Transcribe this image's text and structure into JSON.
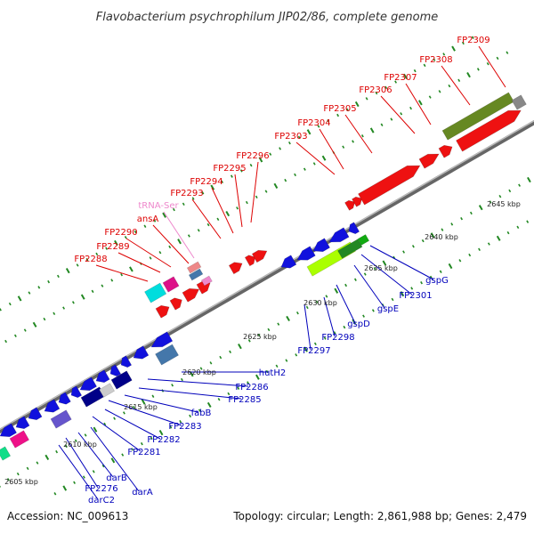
{
  "title": "Flavobacterium psychrophilum JIP02/86, complete genome",
  "accession": "Accession: NC_009613",
  "topology": "Topology: circular; Length: 2,861,988 bp; Genes: 2,479",
  "colors": {
    "forward_gene": "#ee1111",
    "reverse_gene": "#1111dd",
    "forward_label": "#dd0000",
    "reverse_label": "#0000bb",
    "trna": "#ee88cc",
    "backbone": "#888888",
    "ticks": "#228822"
  },
  "kbp_labels": [
    "2605 kbp",
    "2610 kbp",
    "2615 kbp",
    "2620 kbp",
    "2625 kbp",
    "2630 kbp",
    "2635 kbp",
    "2640 kbp",
    "2645 kbp"
  ],
  "forward_labels": [
    "FP2288",
    "FP2289",
    "FP2290",
    "ansA",
    "tRNA-Ser",
    "FP2293",
    "FP2294",
    "FP2295",
    "FP2296",
    "FP2303",
    "FP2304",
    "FP2305",
    "FP2306",
    "FP2307",
    "FP2308",
    "FP2309"
  ],
  "reverse_labels": [
    "hutH2",
    "FP2286",
    "FP2285",
    "fabB",
    "FP2283",
    "FP2282",
    "FP2281",
    "darA",
    "darB",
    "FP2276",
    "darC2",
    "gspG",
    "FP2301",
    "gspE",
    "gspD",
    "FP2298",
    "FP2297"
  ]
}
